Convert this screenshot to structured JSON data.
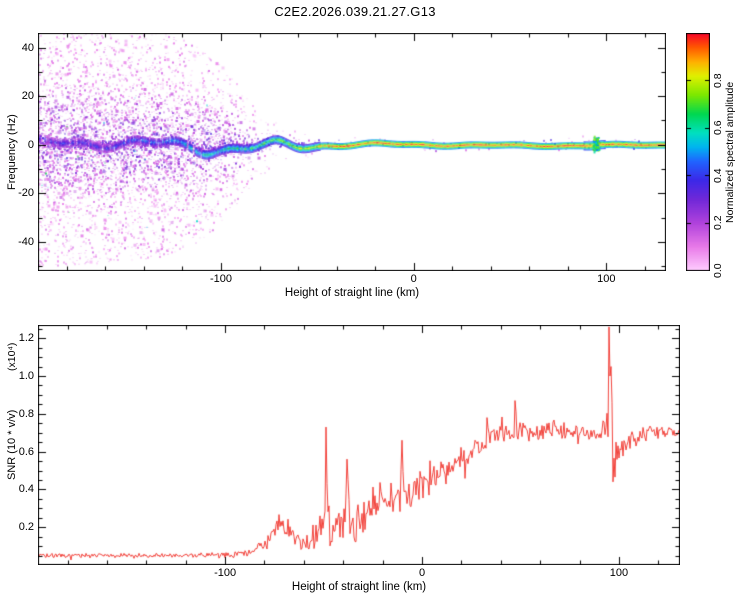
{
  "title": "C2E2.2026.039.21.27.G13",
  "colors": {
    "background": "#ffffff",
    "frame": "#000000",
    "text": "#000000",
    "snr_line": "#f03028"
  },
  "colormap_stops": [
    [
      0.0,
      "#ffccff"
    ],
    [
      0.1,
      "#e87ae8"
    ],
    [
      0.2,
      "#b042dc"
    ],
    [
      0.3,
      "#7028d8"
    ],
    [
      0.38,
      "#3c28e8"
    ],
    [
      0.46,
      "#2064ff"
    ],
    [
      0.52,
      "#00b4f0"
    ],
    [
      0.58,
      "#00e0c0"
    ],
    [
      0.66,
      "#00d850"
    ],
    [
      0.74,
      "#7ce800"
    ],
    [
      0.82,
      "#e0f000"
    ],
    [
      0.88,
      "#ffb000"
    ],
    [
      0.94,
      "#ff5a00"
    ],
    [
      1.0,
      "#f80428"
    ]
  ],
  "chart_data": [
    {
      "type": "heatmap",
      "title": "",
      "xlabel": "Height of straight line (km)",
      "ylabel": "Frequency (Hz)",
      "xlim": [
        -195,
        131
      ],
      "ylim": [
        -52,
        46
      ],
      "x_ticks": [
        "-100",
        "0",
        "100"
      ],
      "y_ticks": [
        "40",
        "20",
        "0",
        "-20",
        "-40"
      ],
      "x_minor_step": 20,
      "y_minor_step": 10,
      "grid": false,
      "colorbar": {
        "label": "Normalized spectral amplitude",
        "ticks": [
          "0.0",
          "0.2",
          "0.4",
          "0.6",
          "0.8"
        ],
        "range": [
          0,
          1
        ]
      },
      "description": "Broadband speckle noise at low straight-line heights narrowing into a single high-amplitude carrier line near 0 Hz at heights above about -40 km; carrier persists to the right edge with a focusing blob near +95 km.",
      "noise_envelope": {
        "x": [
          -195,
          -170,
          -150,
          -130,
          -115,
          -105,
          -95,
          -88,
          -80,
          -72,
          -64,
          -55,
          -45,
          -30,
          0,
          60,
          92,
          98,
          130
        ],
        "halfwidth_hz": [
          48,
          47,
          46,
          44,
          40,
          35,
          28,
          20,
          13,
          9,
          7,
          5,
          4,
          3,
          2.5,
          2.5,
          4,
          2.5,
          2.5
        ],
        "density": [
          1.0,
          1.0,
          0.95,
          0.9,
          0.85,
          0.8,
          0.7,
          0.55,
          0.4,
          0.3,
          0.22,
          0.15,
          0.1,
          0.06,
          0.05,
          0.04,
          0.12,
          0.04,
          0.04
        ]
      },
      "signal_track": {
        "x": [
          -195,
          -160,
          -140,
          -125,
          -110,
          -95,
          -80,
          -70,
          -60,
          -52,
          -46,
          -40,
          -34,
          -20,
          0,
          50,
          88,
          95,
          100,
          130
        ],
        "amplitude": [
          0.35,
          0.38,
          0.45,
          0.52,
          0.55,
          0.6,
          0.65,
          0.7,
          0.74,
          0.8,
          0.85,
          0.93,
          0.95,
          0.95,
          0.95,
          0.95,
          0.95,
          0.9,
          0.95,
          0.95
        ],
        "wiggle_hz": [
          2.5,
          2.5,
          3,
          3.5,
          3.5,
          3,
          3,
          3.5,
          3,
          2.5,
          2,
          1.5,
          1,
          0.8,
          0.6,
          0.4,
          0.5,
          1,
          0.4,
          0.4
        ],
        "thickness_hz": [
          3,
          3,
          3,
          3.2,
          3.2,
          3,
          3,
          3,
          2.8,
          2.6,
          2.4,
          2.4,
          2.4,
          2.4,
          2.4,
          2.4,
          2.4,
          3.5,
          2.4,
          2.4
        ]
      },
      "features": [
        {
          "name": "focusing-blob",
          "x_km": 95,
          "spread_km": 2,
          "spread_hz": 4,
          "amp_min": 0.45,
          "amp_max": 0.8
        }
      ]
    },
    {
      "type": "line",
      "title": "",
      "xlabel": "Height of straight line (km)",
      "ylabel": "SNR (10 * v/v)",
      "y_exponent_label": "(x10⁴)",
      "xlim": [
        -195,
        131
      ],
      "ylim": [
        0,
        1.27
      ],
      "x_ticks": [
        "-100",
        "0",
        "100"
      ],
      "y_ticks": [
        "0.2",
        "0.4",
        "0.6",
        "0.8",
        "1.0",
        "1.2"
      ],
      "x_minor_step": 20,
      "y_minor_step": 0.05,
      "grid": false,
      "series": [
        {
          "name": "SNR",
          "color": "#f03028",
          "x": [
            -195,
            -150,
            -120,
            -100,
            -92,
            -86,
            -80,
            -76,
            -72,
            -68,
            -64,
            -60,
            -56,
            -52,
            -49,
            -46,
            -42,
            -38,
            -34,
            -30,
            -26,
            -22,
            -18,
            -14,
            -10,
            -6,
            -2,
            2,
            6,
            10,
            15,
            20,
            25,
            30,
            35,
            40,
            45,
            50,
            55,
            60,
            65,
            70,
            75,
            80,
            85,
            90,
            94,
            97,
            100,
            104,
            108,
            115,
            122,
            130
          ],
          "mean": [
            0.05,
            0.05,
            0.05,
            0.055,
            0.06,
            0.07,
            0.1,
            0.15,
            0.22,
            0.19,
            0.13,
            0.1,
            0.12,
            0.18,
            0.28,
            0.17,
            0.2,
            0.26,
            0.2,
            0.25,
            0.3,
            0.33,
            0.31,
            0.36,
            0.4,
            0.38,
            0.42,
            0.4,
            0.44,
            0.47,
            0.52,
            0.56,
            0.6,
            0.64,
            0.67,
            0.69,
            0.7,
            0.72,
            0.71,
            0.7,
            0.72,
            0.71,
            0.7,
            0.69,
            0.7,
            0.71,
            0.73,
            0.7,
            0.58,
            0.64,
            0.67,
            0.7,
            0.71,
            0.7
          ],
          "noise": [
            0.015,
            0.015,
            0.015,
            0.02,
            0.02,
            0.03,
            0.05,
            0.06,
            0.07,
            0.06,
            0.05,
            0.05,
            0.08,
            0.12,
            0.16,
            0.1,
            0.12,
            0.14,
            0.12,
            0.12,
            0.12,
            0.12,
            0.12,
            0.12,
            0.12,
            0.11,
            0.1,
            0.1,
            0.1,
            0.1,
            0.09,
            0.08,
            0.07,
            0.06,
            0.06,
            0.06,
            0.06,
            0.07,
            0.06,
            0.06,
            0.06,
            0.06,
            0.06,
            0.06,
            0.05,
            0.05,
            0.07,
            0.12,
            0.1,
            0.07,
            0.05,
            0.04,
            0.04,
            0.04
          ]
        }
      ],
      "spikes": [
        {
          "x": -49,
          "y": 0.73
        },
        {
          "x": -38,
          "y": 0.56
        },
        {
          "x": -10,
          "y": 0.66
        },
        {
          "x": 33,
          "y": 0.78
        },
        {
          "x": 47,
          "y": 0.87
        },
        {
          "x": 95,
          "y": 1.26
        },
        {
          "x": 96,
          "y": 1.05
        },
        {
          "x": 97,
          "y": 0.44
        }
      ]
    }
  ]
}
